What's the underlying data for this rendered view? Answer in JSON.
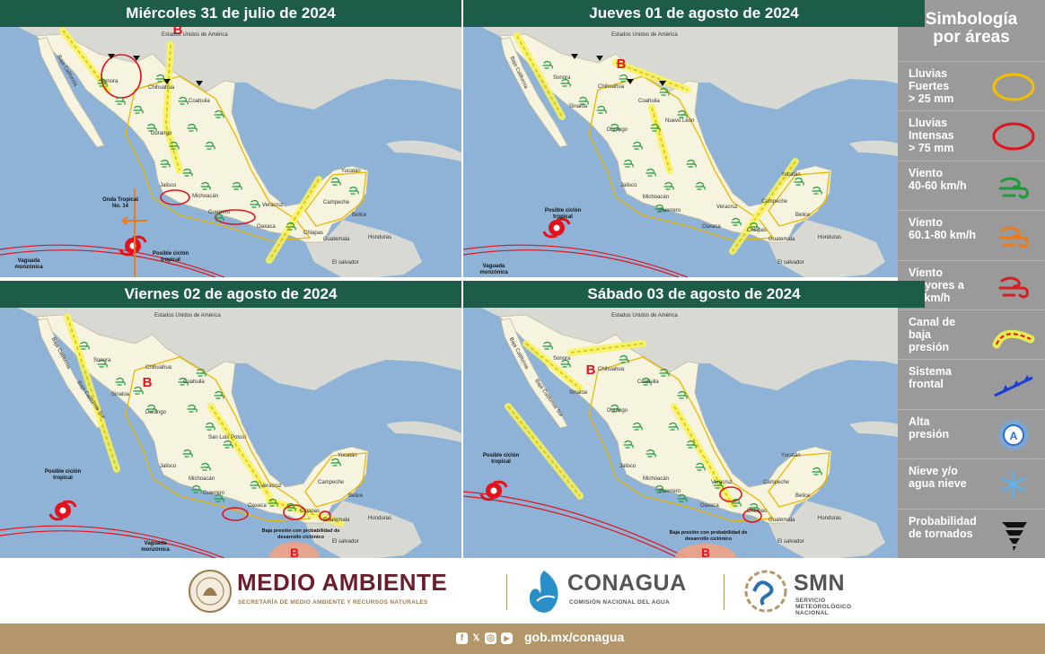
{
  "panels": [
    {
      "title": "Miércoles 31 de julio de 2024",
      "labels": {
        "usa": "Estados Unidos de América",
        "sonora": "Sonora",
        "chihuahua": "Chihuahua",
        "coahuila": "Coahuila",
        "durango": "Durango",
        "jalisco": "Jalisco",
        "michoacan": "Michoacán",
        "guerrero": "Guerrero",
        "oaxaca": "Oaxaca",
        "chiapas": "Chiapas",
        "veracruz": "Veracruz",
        "campeche": "Campeche",
        "yucatan": "Yucatán",
        "belice": "Belice",
        "guatemala": "Guatemala",
        "honduras": "Honduras",
        "elsalvador": "El salvador",
        "bc": "Baja California"
      },
      "notes": {
        "onda": "Onda Tropical No. 14",
        "ciclon": "Posible ciclón tropical",
        "vaguada": "Vaguada monzónica"
      }
    },
    {
      "title": "Jueves 01 de agosto de 2024",
      "labels": {
        "usa": "Estados Unidos de América",
        "sonora": "Sonora",
        "chihuahua": "Chihuahua",
        "coahuila": "Coahuila",
        "durango": "Durango",
        "jalisco": "Jalisco",
        "michoacan": "Michoacán",
        "guerrero": "Guerrero",
        "oaxaca": "Oaxaca",
        "chiapas": "Chiapas",
        "veracruz": "Veracruz",
        "campeche": "Campeche",
        "yucatan": "Yucatán",
        "belice": "Belice",
        "guatemala": "Guatemala",
        "honduras": "Honduras",
        "elsalvador": "El salvador",
        "bc": "Baja California",
        "sinaloa": "Sinaloa",
        "nuevo": "Nuevo León"
      },
      "notes": {
        "ciclon": "Posible ciclón tropical",
        "vaguada": "Vaguada monzónica"
      }
    },
    {
      "title": "Viernes 02 de agosto de 2024",
      "labels": {
        "usa": "Estados Unidos de América",
        "sonora": "Sonora",
        "chihuahua": "Chihuahua",
        "coahuila": "Coahuila",
        "durango": "Durango",
        "jalisco": "Jalisco",
        "michoacan": "Michoacán",
        "guerrero": "Guerrero",
        "oaxaca": "Oaxaca",
        "chiapas": "Chiapas",
        "veracruz": "Veracruz",
        "campeche": "Campeche",
        "yucatan": "Yucatán",
        "belice": "Belice",
        "guatemala": "Guatemala",
        "honduras": "Honduras",
        "elsalvador": "El salvador",
        "bc": "Baja California",
        "sinaloa": "Sinaloa",
        "bcs": "Baja California Sur",
        "slp": "San Luis Potosí"
      },
      "notes": {
        "ciclon": "Posible ciclón tropical",
        "vaguada": "Vaguada monzónica",
        "baja": "Baja presión con probabilidad de desarrollo ciclónico"
      }
    },
    {
      "title": "Sábado 03 de agosto de 2024",
      "labels": {
        "usa": "Estados Unidos de América",
        "sonora": "Sonora",
        "chihuahua": "Chihuahua",
        "coahuila": "Coahuila",
        "durango": "Durango",
        "jalisco": "Jalisco",
        "michoacan": "Michoacán",
        "guerrero": "Guerrero",
        "oaxaca": "Oaxaca",
        "chiapas": "Chiapas",
        "veracruz": "Veracruz",
        "campeche": "Campeche",
        "yucatan": "Yucatán",
        "belice": "Belice",
        "guatemala": "Guatemala",
        "honduras": "Honduras",
        "elsalvador": "El salvador",
        "bc": "Baja California",
        "sinaloa": "Sinaloa",
        "bcs": "Baja California Sur"
      },
      "notes": {
        "ciclon": "Posible ciclón tropical",
        "baja": "Baja presión con probabilidad de desarrollo ciclónico"
      }
    }
  ],
  "pressure_letter": "B",
  "legend": {
    "title_line1": "Simbología",
    "title_line2": "por áreas",
    "items": [
      {
        "label_lines": [
          "Lluvias",
          "Fuertes",
          "> 25 mm"
        ],
        "icon": "yellow-ellipse-icon",
        "color": "#f2c000"
      },
      {
        "label_lines": [
          "Lluvias",
          "Intensas",
          "> 75 mm"
        ],
        "icon": "red-ellipse-icon",
        "color": "#e0141e"
      },
      {
        "label_lines": [
          "Viento",
          "40-60 km/h"
        ],
        "icon": "green-wind-icon",
        "color": "#1e9a3c"
      },
      {
        "label_lines": [
          "Viento",
          "60.1-80 km/h"
        ],
        "icon": "orange-wind-icon",
        "color": "#f07a1a"
      },
      {
        "label_lines": [
          "Viento",
          "mayores a",
          "80 km/h"
        ],
        "icon": "red-wind-icon",
        "color": "#d81e1e"
      },
      {
        "label_lines": [
          "Canal de",
          "baja",
          "presión"
        ],
        "icon": "trough-icon",
        "color": "#f2c000"
      },
      {
        "label_lines": [
          "Sistema",
          "frontal"
        ],
        "icon": "cold-front-icon",
        "color": "#1a3fd6"
      },
      {
        "label_lines": [
          "Alta",
          "presión"
        ],
        "icon": "high-pressure-icon",
        "color": "#2a6fd6"
      },
      {
        "label_lines": [
          "Nieve y/o",
          "agua nieve"
        ],
        "icon": "snowflake-icon",
        "color": "#5ab4f0"
      },
      {
        "label_lines": [
          "Probabilidad",
          "de tornados"
        ],
        "icon": "tornado-icon",
        "color": "#111111"
      }
    ]
  },
  "footer": {
    "medio_ambiente": "MEDIO AMBIENTE",
    "medio_ambiente_sub": "SECRETARÍA DE MEDIO AMBIENTE Y RECURSOS NATURALES",
    "conagua": "CONAGUA",
    "conagua_sub": "COMISIÓN NACIONAL DEL AGUA",
    "smn": "SMN",
    "smn_sub1": "SERVICIO",
    "smn_sub2": "METEOROLÓGICO",
    "smn_sub3": "NACIONAL",
    "link": "gob.mx/conagua",
    "social": [
      "f",
      "𝕏",
      "◎",
      "▶"
    ]
  }
}
